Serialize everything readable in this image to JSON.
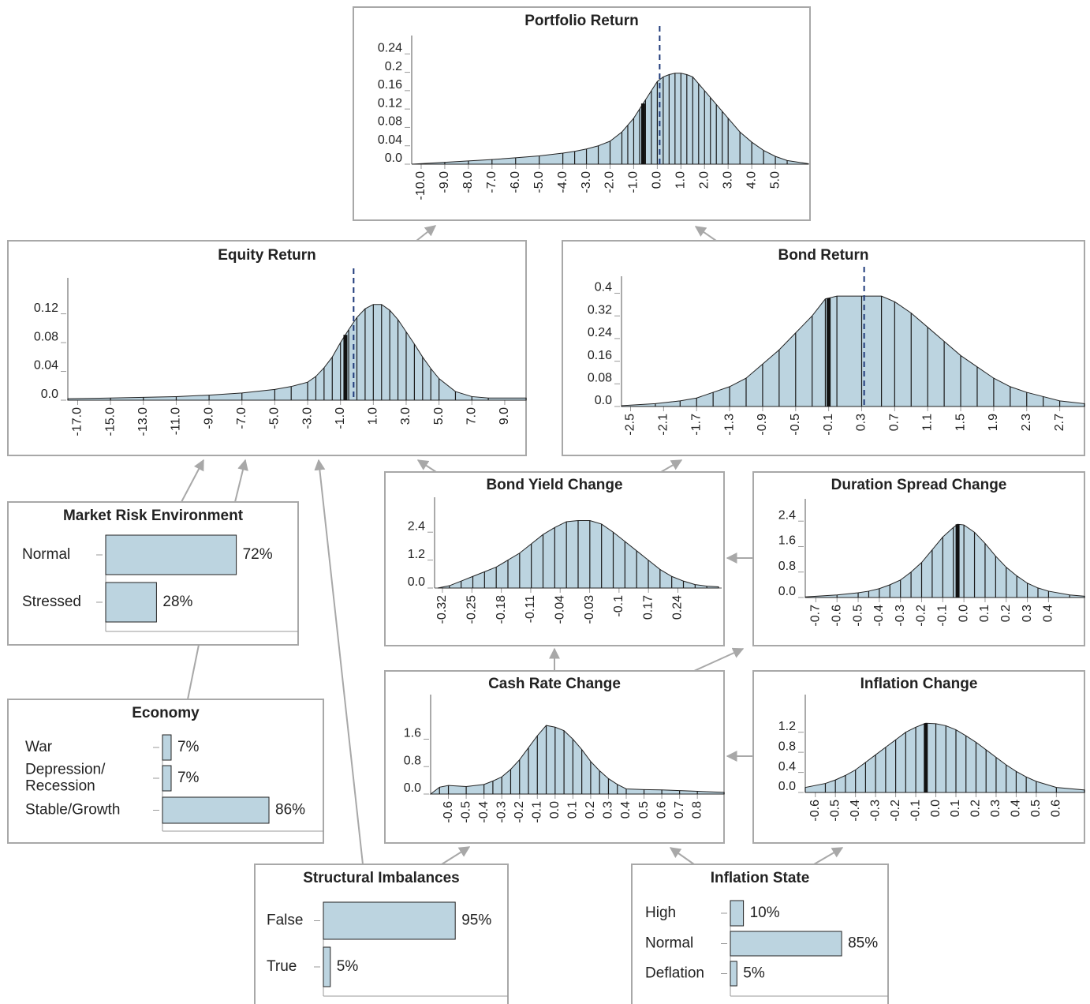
{
  "chart_data": [
    {
      "type": "area",
      "title": "Portfolio Return",
      "color": "#bcd4e0",
      "x": [
        -10.4,
        -9,
        -8,
        -7,
        -6,
        -5,
        -4,
        -3.5,
        -3,
        -2.5,
        -2,
        -1.5,
        -1.25,
        -1,
        -0.75,
        -0.5,
        -0.25,
        0,
        0.25,
        0.5,
        0.75,
        1,
        1.25,
        1.5,
        1.75,
        2,
        2.25,
        2.5,
        2.75,
        3,
        3.5,
        4,
        4.5,
        5,
        5.5,
        6.4
      ],
      "values": [
        0,
        0.004,
        0.007,
        0.01,
        0.014,
        0.018,
        0.024,
        0.028,
        0.033,
        0.04,
        0.05,
        0.07,
        0.085,
        0.1,
        0.12,
        0.14,
        0.16,
        0.18,
        0.19,
        0.195,
        0.198,
        0.198,
        0.195,
        0.19,
        0.175,
        0.16,
        0.145,
        0.13,
        0.115,
        0.1,
        0.07,
        0.048,
        0.03,
        0.017,
        0.008,
        0.001
      ],
      "xlim": [
        -10.4,
        6.4
      ],
      "ylim": [
        0,
        0.28
      ],
      "xticks": [
        {
          "value": -10,
          "label": "-10.0"
        },
        {
          "value": -9,
          "label": "-9.0"
        },
        {
          "value": -8,
          "label": "-8.0"
        },
        {
          "value": -7,
          "label": "-7.0"
        },
        {
          "value": -6,
          "label": "-6.0"
        },
        {
          "value": -5,
          "label": "-5.0"
        },
        {
          "value": -4,
          "label": "-4.0"
        },
        {
          "value": -3,
          "label": "-3.0"
        },
        {
          "value": -2,
          "label": "-2.0"
        },
        {
          "value": -1,
          "label": "-1.0"
        },
        {
          "value": 0,
          "label": "0.0"
        },
        {
          "value": 1,
          "label": "1.0"
        },
        {
          "value": 2,
          "label": "2.0"
        },
        {
          "value": 3,
          "label": "3.0"
        },
        {
          "value": 4,
          "label": "4.0"
        },
        {
          "value": 5,
          "label": "5.0"
        }
      ],
      "yticks": [
        {
          "value": 0,
          "label": "0.0"
        },
        0.04,
        0.08,
        0.12,
        0.16,
        0.2,
        0.24
      ],
      "reference_x": 0.1,
      "highlight_x": -0.6
    },
    {
      "type": "area",
      "title": "Equity Return",
      "color": "#bcd4e0",
      "x": [
        -17.6,
        -15,
        -13,
        -11,
        -9,
        -7,
        -5,
        -4,
        -3,
        -2.5,
        -2,
        -1.5,
        -1,
        -0.5,
        0,
        0.5,
        1,
        1.5,
        2,
        2.5,
        3,
        3.5,
        4,
        4.5,
        5,
        6,
        7,
        8,
        10.3
      ],
      "values": [
        0.002,
        0.003,
        0.004,
        0.005,
        0.007,
        0.01,
        0.015,
        0.019,
        0.025,
        0.033,
        0.045,
        0.06,
        0.08,
        0.098,
        0.115,
        0.127,
        0.133,
        0.133,
        0.125,
        0.112,
        0.095,
        0.078,
        0.06,
        0.044,
        0.03,
        0.012,
        0.005,
        0.003,
        0.003
      ],
      "xlim": [
        -17.6,
        10.3
      ],
      "ylim": [
        0,
        0.17
      ],
      "xticks": [
        {
          "value": -17,
          "label": "-17.0"
        },
        {
          "value": -15,
          "label": "-15.0"
        },
        {
          "value": -13,
          "label": "-13.0"
        },
        {
          "value": -11,
          "label": "-11.0"
        },
        {
          "value": -9,
          "label": "-9.0"
        },
        {
          "value": -7,
          "label": "-7.0"
        },
        {
          "value": -5,
          "label": "-5.0"
        },
        {
          "value": -3,
          "label": "-3.0"
        },
        {
          "value": -1,
          "label": "-1.0"
        },
        {
          "value": 1,
          "label": "1.0"
        },
        {
          "value": 3,
          "label": "3.0"
        },
        {
          "value": 5,
          "label": "5.0"
        },
        {
          "value": 7,
          "label": "7.0"
        },
        {
          "value": 9,
          "label": "9.0"
        }
      ],
      "yticks": [
        {
          "value": 0,
          "label": "0.0"
        },
        0.04,
        0.08,
        0.12
      ],
      "reference_x": -0.2,
      "highlight_x": -0.7
    },
    {
      "type": "area",
      "title": "Bond Return",
      "color": "#bcd4e0",
      "x": [
        -2.61,
        -2.2,
        -1.9,
        -1.7,
        -1.5,
        -1.3,
        -1.1,
        -0.9,
        -0.7,
        -0.5,
        -0.3,
        -0.14,
        0,
        0.3,
        0.54,
        0.7,
        0.9,
        1.1,
        1.3,
        1.5,
        1.7,
        1.9,
        2.1,
        2.3,
        2.5,
        2.7,
        3.0
      ],
      "values": [
        0.003,
        0.01,
        0.02,
        0.03,
        0.05,
        0.07,
        0.1,
        0.15,
        0.2,
        0.26,
        0.32,
        0.38,
        0.39,
        0.39,
        0.39,
        0.37,
        0.33,
        0.28,
        0.23,
        0.18,
        0.14,
        0.1,
        0.07,
        0.05,
        0.035,
        0.02,
        0.01
      ],
      "xlim": [
        -2.61,
        3.0
      ],
      "ylim": [
        0,
        0.46
      ],
      "xticks": [
        -2.5,
        -2.1,
        -1.7,
        -1.3,
        -0.9,
        -0.5,
        -0.1,
        0.3,
        0.7,
        1.1,
        1.5,
        1.9,
        2.3,
        2.7
      ],
      "yticks": [
        {
          "value": 0,
          "label": "0.0"
        },
        0.08,
        0.16,
        0.24,
        0.32,
        0.4
      ],
      "reference_x": 0.33,
      "highlight_x": -0.1
    },
    {
      "type": "area",
      "title": "Bond Yield Change",
      "color": "#bcd4e0",
      "values": [
        0,
        0.1,
        0.3,
        0.5,
        0.7,
        0.9,
        1.2,
        1.5,
        1.9,
        2.3,
        2.6,
        2.85,
        2.9,
        2.9,
        2.75,
        2.4,
        2.0,
        1.6,
        1.2,
        0.8,
        0.5,
        0.3,
        0.15,
        0.08,
        0.05
      ],
      "ylim": [
        0,
        3.9
      ],
      "xticks": [
        "-0.32",
        "-0.25",
        "-0.18",
        "-0.11",
        "-0.04",
        "-0.03",
        "-0.1",
        "0.17",
        "0.24"
      ],
      "yticks": [
        {
          "value": 0,
          "label": "0.0"
        },
        1.2,
        2.4
      ]
    },
    {
      "type": "area",
      "title": "Duration Spread Change",
      "color": "#bcd4e0",
      "x": [
        -0.75,
        -0.6,
        -0.5,
        -0.45,
        -0.4,
        -0.35,
        -0.3,
        -0.25,
        -0.2,
        -0.15,
        -0.1,
        -0.05,
        -0.03,
        0,
        0.05,
        0.1,
        0.15,
        0.2,
        0.25,
        0.3,
        0.35,
        0.4,
        0.5,
        0.57
      ],
      "values": [
        0.02,
        0.08,
        0.15,
        0.2,
        0.28,
        0.4,
        0.55,
        0.8,
        1.1,
        1.5,
        1.9,
        2.2,
        2.3,
        2.28,
        2.05,
        1.7,
        1.3,
        0.95,
        0.68,
        0.45,
        0.3,
        0.2,
        0.08,
        0.04
      ],
      "xlim": [
        -0.75,
        0.57
      ],
      "ylim": [
        0,
        3.1
      ],
      "xticks": [
        -0.7,
        -0.6,
        -0.5,
        -0.4,
        -0.3,
        -0.2,
        -0.1,
        {
          "value": 0,
          "label": "0.0"
        },
        0.1,
        0.2,
        0.3,
        0.4
      ],
      "yticks": [
        {
          "value": 0,
          "label": "0.0"
        },
        0.8,
        1.6,
        2.4
      ],
      "highlight_x": -0.03
    },
    {
      "type": "hbar",
      "title": "Market Risk Environment",
      "color": "#bcd4e0",
      "categories": [
        "Normal",
        "Stressed"
      ],
      "values": [
        72,
        28
      ],
      "value_labels": [
        "72%",
        "28%"
      ]
    },
    {
      "type": "hbar",
      "title": "Economy",
      "color": "#bcd4e0",
      "categories": [
        "War",
        "Depression/\nRecession",
        "Stable/Growth"
      ],
      "values": [
        7,
        7,
        86
      ],
      "value_labels": [
        "7%",
        "7%",
        "86%"
      ]
    },
    {
      "type": "area",
      "title": "Cash Rate Change",
      "color": "#bcd4e0",
      "x": [
        -0.7,
        -0.65,
        -0.6,
        -0.5,
        -0.4,
        -0.35,
        -0.3,
        -0.25,
        -0.2,
        -0.15,
        -0.1,
        -0.05,
        0,
        0.05,
        0.1,
        0.15,
        0.2,
        0.25,
        0.3,
        0.35,
        0.4,
        0.5,
        0.6,
        0.7,
        0.8,
        0.95
      ],
      "values": [
        0,
        0.2,
        0.25,
        0.22,
        0.28,
        0.38,
        0.5,
        0.72,
        1.0,
        1.35,
        1.7,
        2.0,
        1.95,
        1.85,
        1.6,
        1.3,
        0.95,
        0.68,
        0.45,
        0.28,
        0.15,
        0.13,
        0.12,
        0.1,
        0.08,
        0.05
      ],
      "xlim": [
        -0.7,
        0.95
      ],
      "ylim": [
        0,
        2.9
      ],
      "xticks": [
        -0.6,
        -0.5,
        -0.4,
        -0.3,
        -0.2,
        -0.1,
        {
          "value": 0,
          "label": "0.0"
        },
        0.1,
        0.2,
        0.3,
        0.4,
        0.5,
        0.6,
        0.7,
        0.8
      ],
      "yticks": [
        {
          "value": 0,
          "label": "0.0"
        },
        0.8,
        1.6
      ]
    },
    {
      "type": "area",
      "title": "Inflation Change",
      "color": "#bcd4e0",
      "x": [
        -0.65,
        -0.55,
        -0.5,
        -0.45,
        -0.4,
        -0.35,
        -0.3,
        -0.25,
        -0.2,
        -0.15,
        -0.1,
        -0.05,
        0,
        0.05,
        0.1,
        0.15,
        0.2,
        0.25,
        0.3,
        0.35,
        0.4,
        0.45,
        0.5,
        0.6,
        0.74
      ],
      "values": [
        0.1,
        0.18,
        0.25,
        0.34,
        0.45,
        0.6,
        0.75,
        0.9,
        1.05,
        1.2,
        1.3,
        1.38,
        1.37,
        1.33,
        1.25,
        1.13,
        1.0,
        0.85,
        0.7,
        0.55,
        0.42,
        0.31,
        0.22,
        0.1,
        0.05
      ],
      "xlim": [
        -0.65,
        0.74
      ],
      "ylim": [
        0,
        1.95
      ],
      "xticks": [
        -0.6,
        -0.5,
        -0.4,
        -0.3,
        -0.2,
        -0.1,
        {
          "value": 0,
          "label": "0.0"
        },
        0.1,
        0.2,
        0.3,
        0.4,
        0.5,
        0.6
      ],
      "yticks": [
        {
          "value": 0,
          "label": "0.0"
        },
        0.4,
        0.8,
        1.2
      ],
      "highlight_x": -0.05
    },
    {
      "type": "hbar",
      "title": "Structural Imbalances",
      "color": "#bcd4e0",
      "categories": [
        "False",
        "True"
      ],
      "values": [
        95,
        5
      ],
      "value_labels": [
        "95%",
        "5%"
      ]
    },
    {
      "type": "hbar",
      "title": "Inflation State",
      "color": "#bcd4e0",
      "categories": [
        "High",
        "Normal",
        "Deflation"
      ],
      "values": [
        10,
        85,
        5
      ],
      "value_labels": [
        "10%",
        "85%",
        "5%"
      ]
    }
  ]
}
